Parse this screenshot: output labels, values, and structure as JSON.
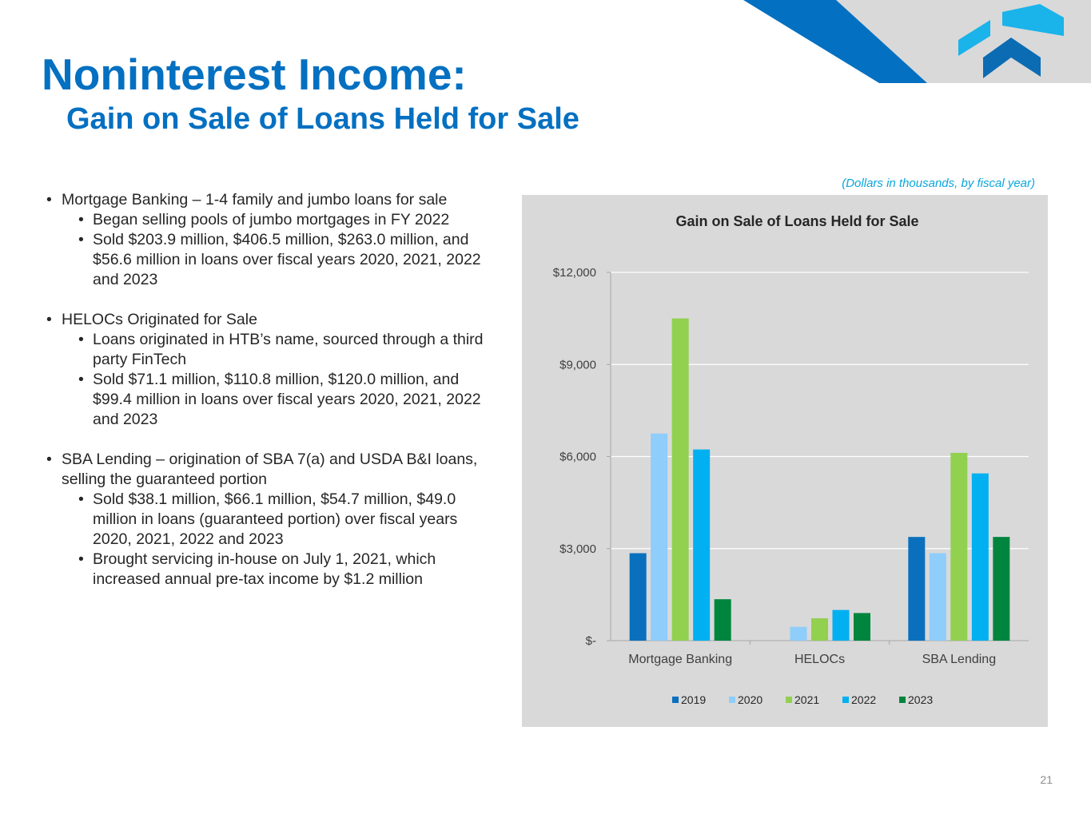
{
  "slide": {
    "title": "Noninterest Income:",
    "subtitle": "Gain on Sale of Loans Held for Sale",
    "note": "(Dollars in thousands, by fiscal year)",
    "page_number": "21"
  },
  "bullets": [
    {
      "level": 1,
      "text": "Mortgage Banking – 1-4 family and jumbo loans for sale"
    },
    {
      "level": 2,
      "text": "Began selling pools of jumbo mortgages in FY 2022"
    },
    {
      "level": 2,
      "text": "Sold $203.9 million, $406.5 million, $263.0 million, and $56.6 million in loans over fiscal years 2020, 2021, 2022 and 2023"
    },
    {
      "level": 1,
      "text": "HELOCs Originated for Sale",
      "gap_before": true
    },
    {
      "level": 2,
      "text": "Loans originated in HTB’s name, sourced through a third party FinTech"
    },
    {
      "level": 2,
      "text": "Sold $71.1 million, $110.8 million, $120.0 million, and $99.4 million in loans over fiscal years 2020, 2021, 2022 and 2023"
    },
    {
      "level": 1,
      "text": "SBA Lending – origination of SBA 7(a) and USDA B&I loans, selling the guaranteed portion",
      "gap_before": true
    },
    {
      "level": 2,
      "text": "Sold $38.1 million, $66.1 million, $54.7 million, $49.0 million in loans (guaranteed portion) over fiscal years 2020, 2021, 2022 and 2023"
    },
    {
      "level": 2,
      "text": "Brought servicing in-house on July 1, 2021, which increased annual pre-tax income by $1.2 million"
    }
  ],
  "colors": {
    "brand_blue": "#0470c1",
    "accent_cyan": "#0aa6de",
    "logo_light": "#1ab3ea",
    "logo_dark": "#0b6cb3",
    "chart_background": "#d9d9d9"
  },
  "chart_data": {
    "type": "bar",
    "title": "Gain on Sale of Loans Held for Sale",
    "xlabel": "",
    "ylabel": "",
    "categories": [
      "Mortgage Banking",
      "HELOCs",
      "SBA Lending"
    ],
    "series": [
      {
        "name": "2019",
        "color": "#0a70bd",
        "values": [
          2850,
          0,
          3380
        ]
      },
      {
        "name": "2020",
        "color": "#8fcdfb",
        "values": [
          6750,
          450,
          2850
        ]
      },
      {
        "name": "2021",
        "color": "#92d050",
        "values": [
          10500,
          730,
          6120
        ]
      },
      {
        "name": "2022",
        "color": "#00b0f0",
        "values": [
          6230,
          1000,
          5450
        ]
      },
      {
        "name": "2023",
        "color": "#00853e",
        "values": [
          1350,
          900,
          3380
        ]
      }
    ],
    "ylim": [
      0,
      12000
    ],
    "yticks": [
      0,
      3000,
      6000,
      9000,
      12000
    ],
    "ytick_labels": [
      "$-",
      "$3,000",
      "$6,000",
      "$9,000",
      "$12,000"
    ],
    "grid": true,
    "legend_position": "bottom"
  }
}
